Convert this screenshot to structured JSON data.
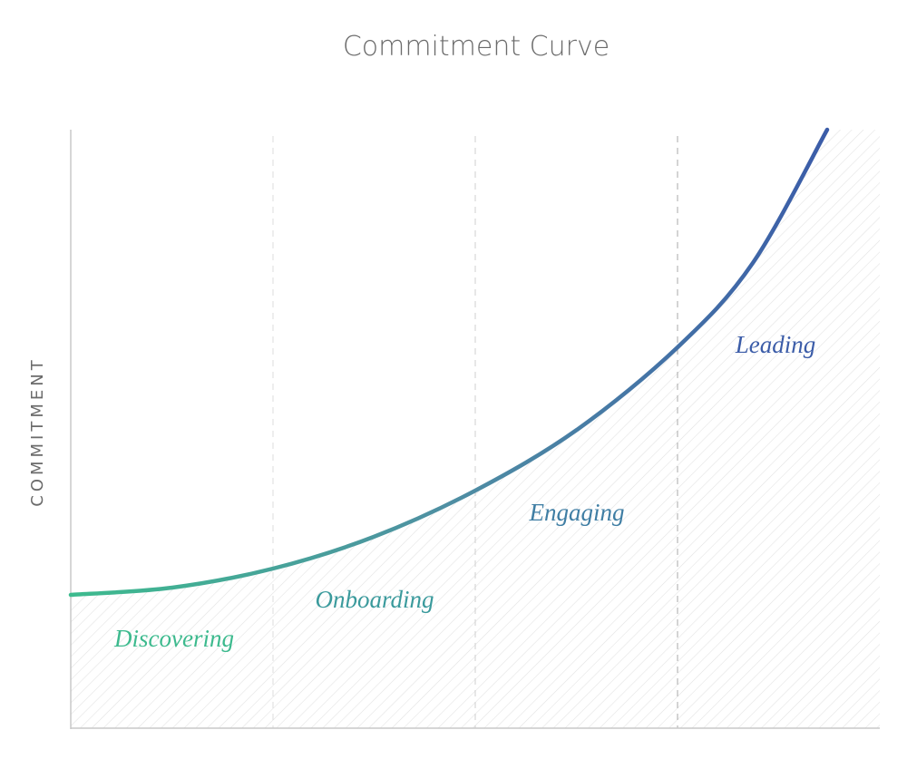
{
  "title": "Commitment Curve",
  "y_axis_label": "COMMITMENT",
  "stages": [
    {
      "label": "Discovering"
    },
    {
      "label": "Onboarding"
    },
    {
      "label": "Engaging"
    },
    {
      "label": "Leading"
    }
  ]
}
